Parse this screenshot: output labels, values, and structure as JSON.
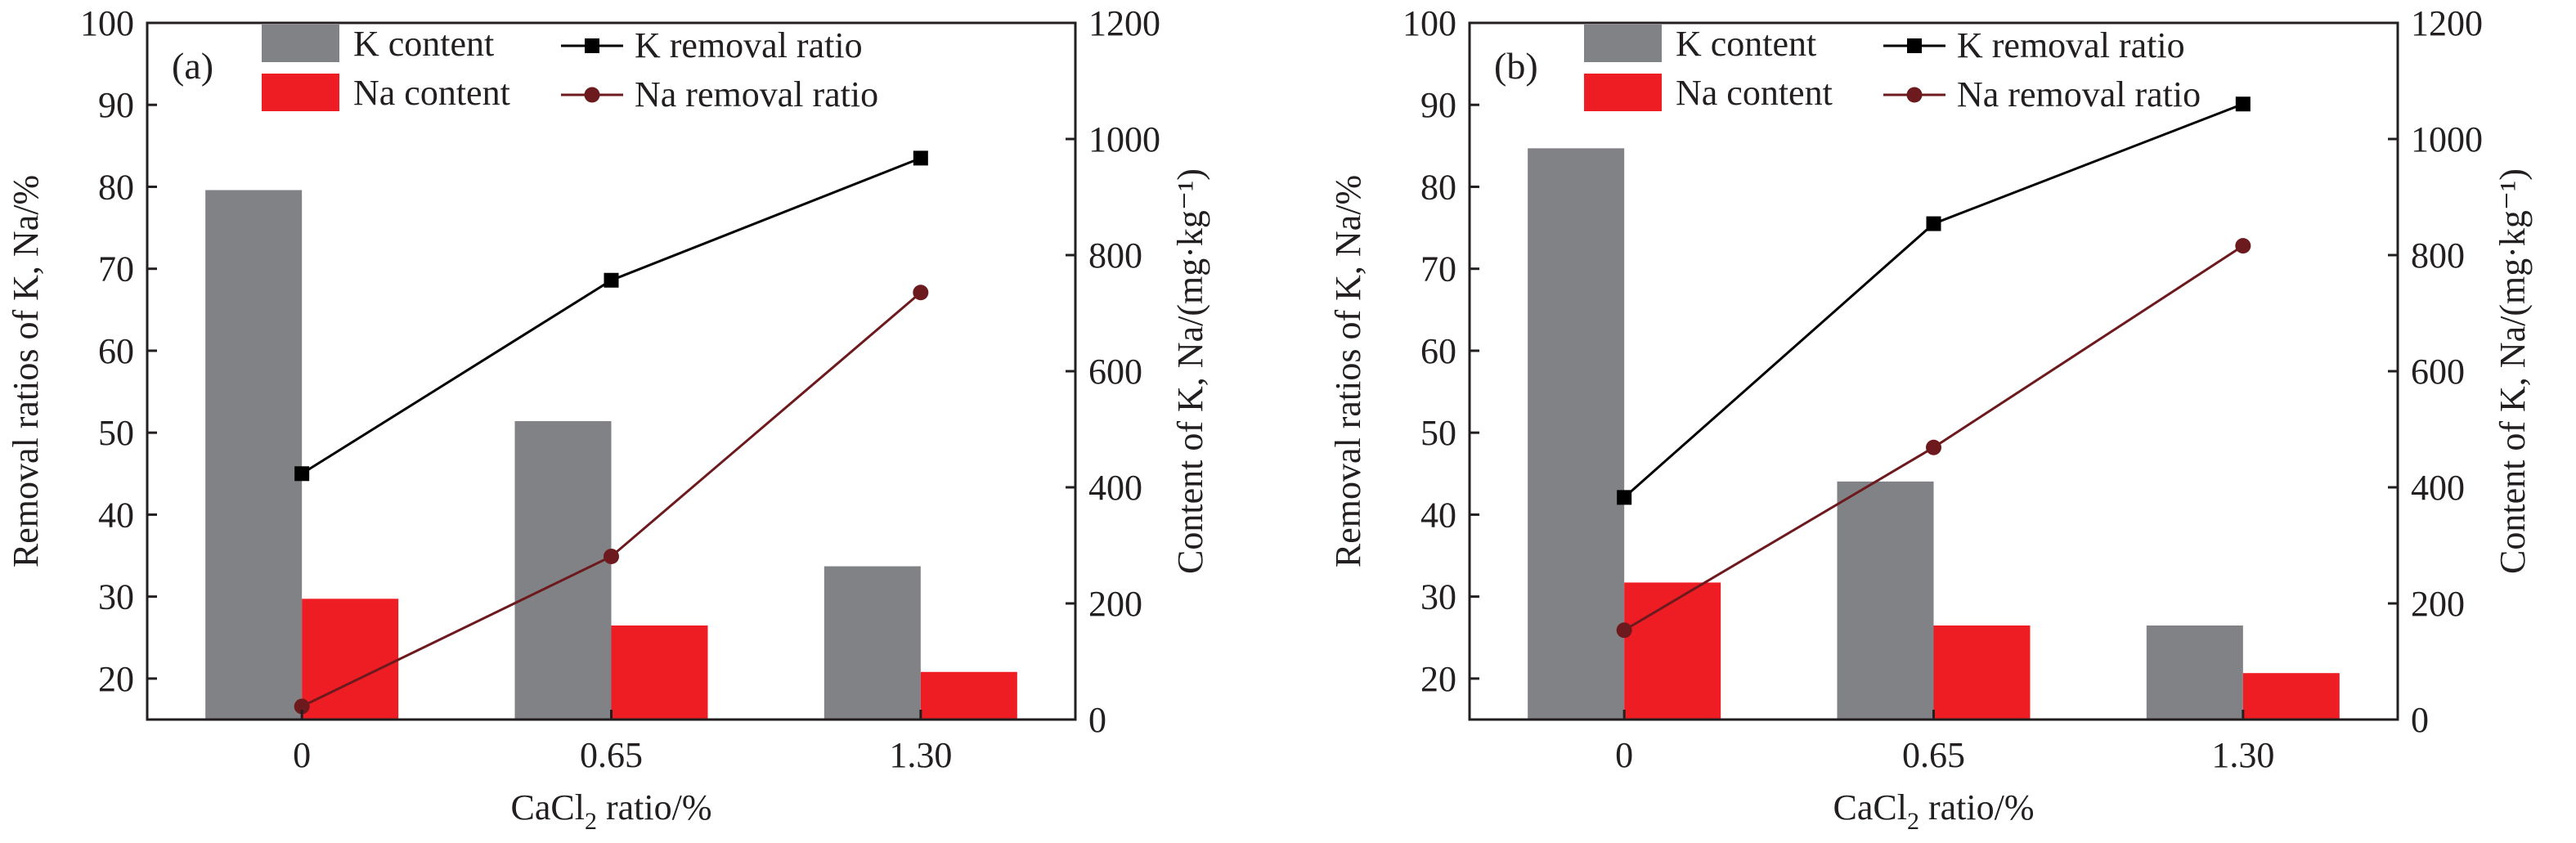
{
  "figure": {
    "colors": {
      "k_content": "#808285",
      "na_content": "#ee1d24",
      "k_line": "#000000",
      "na_line": "#6d1a1f",
      "axis": "#231f20"
    }
  },
  "chart_data": [
    {
      "type": "bar+line",
      "panel_label": "(a)",
      "categories": [
        "0",
        "0.65",
        "1.30"
      ],
      "xlabel": "CaCl",
      "xlabel_sub": "2",
      "xlabel_suffix": " ratio/%",
      "ylabel_left": "Removal ratios of K, Na/%",
      "ylabel_right": "Content of K, Na/(mg·kg⁻¹)",
      "ylim_left": [
        15,
        100
      ],
      "yticks_left": [
        "20",
        "30",
        "40",
        "50",
        "60",
        "70",
        "80",
        "90",
        "100"
      ],
      "ylim_right": [
        0,
        1200
      ],
      "yticks_right": [
        "0",
        "200",
        "400",
        "600",
        "800",
        "1000",
        "1200"
      ],
      "bar_series": [
        {
          "name": "K content",
          "values": [
            912,
            514,
            264
          ]
        },
        {
          "name": "Na content",
          "values": [
            208,
            162,
            82
          ]
        }
      ],
      "line_series": [
        {
          "name": "K removal ratio",
          "values": [
            45.0,
            68.6,
            83.5
          ]
        },
        {
          "name": "Na removal ratio",
          "values": [
            16.6,
            34.9,
            67.1
          ]
        }
      ],
      "legend": {
        "position": "top",
        "labels": [
          "K content",
          "Na content",
          "K removal ratio",
          "Na removal ratio"
        ]
      },
      "grid": false
    },
    {
      "type": "bar+line",
      "panel_label": "(b)",
      "categories": [
        "0",
        "0.65",
        "1.30"
      ],
      "xlabel": "CaCl",
      "xlabel_sub": "2",
      "xlabel_suffix": " ratio/%",
      "ylabel_left": "Removal ratios of K, Na/%",
      "ylabel_right": "Content of K, Na/(mg·kg⁻¹)",
      "ylim_left": [
        15,
        100
      ],
      "yticks_left": [
        "20",
        "30",
        "40",
        "50",
        "60",
        "70",
        "80",
        "90",
        "100"
      ],
      "ylim_right": [
        0,
        1200
      ],
      "yticks_right": [
        "0",
        "200",
        "400",
        "600",
        "800",
        "1000",
        "1200"
      ],
      "bar_series": [
        {
          "name": "K content",
          "values": [
            984,
            410,
            162
          ]
        },
        {
          "name": "Na content",
          "values": [
            236,
            162,
            80
          ]
        }
      ],
      "line_series": [
        {
          "name": "K removal ratio",
          "values": [
            42.1,
            75.5,
            90.1
          ]
        },
        {
          "name": "Na removal ratio",
          "values": [
            25.9,
            48.2,
            72.8
          ]
        }
      ],
      "legend": {
        "position": "top",
        "labels": [
          "K content",
          "Na content",
          "K removal ratio",
          "Na removal ratio"
        ]
      },
      "grid": false
    }
  ]
}
